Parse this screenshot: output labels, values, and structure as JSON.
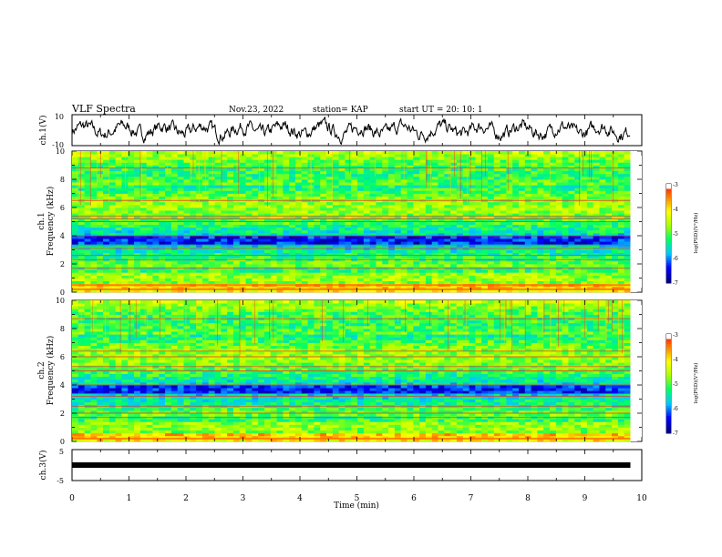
{
  "header": {
    "title": "VLF Spectra",
    "date": "Nov.23, 2022",
    "station": "station= KAP",
    "start": "start  UT =   20: 10: 1"
  },
  "colors": {
    "trace": "#000000",
    "colormap": [
      "#000080",
      "#0000ff",
      "#00c8ff",
      "#00ff66",
      "#aaff00",
      "#ffff00",
      "#ff8000",
      "#ff0000",
      "#ffffff"
    ]
  },
  "chart_data": [
    {
      "type": "line",
      "name": "ch1-waveform",
      "ylabel": "ch.1(V)",
      "ylim": [
        -10,
        10
      ],
      "yticks": [
        "10",
        "-10"
      ],
      "xlim": [
        0,
        10
      ]
    },
    {
      "type": "heatmap",
      "name": "ch1-spectrogram",
      "ylabel": "ch.1\nFrequency (kHz)",
      "ylabel_lines": [
        "ch.1",
        "Frequency (kHz)"
      ],
      "ylim": [
        0,
        10
      ],
      "yticks": [
        "0",
        "2",
        "4",
        "6",
        "8",
        "10"
      ],
      "xlim": [
        0,
        9.8
      ],
      "colorbar": {
        "label": "log(PSD)(V²/Hz)",
        "range": [
          -7,
          -3
        ],
        "ticks": [
          "-3",
          "-4",
          "-5",
          "-6",
          "-7"
        ]
      },
      "bands_khz": [
        0.2,
        0.5,
        1.7,
        2.3,
        2.6,
        3.1,
        3.3,
        4.0,
        5.0,
        5.2,
        5.4,
        6.5,
        8.8
      ]
    },
    {
      "type": "heatmap",
      "name": "ch2-spectrogram",
      "ylabel": "ch.2\nFrequency (kHz)",
      "ylabel_lines": [
        "ch.2",
        "Frequency (kHz)"
      ],
      "ylim": [
        0,
        10
      ],
      "yticks": [
        "0",
        "2",
        "4",
        "6",
        "8",
        "10"
      ],
      "xlim": [
        0,
        9.8
      ],
      "colorbar": {
        "label": "log(PSD)(V²/Hz)",
        "range": [
          -7,
          -3
        ],
        "ticks": [
          "-3",
          "-4",
          "-5",
          "-6",
          "-7"
        ]
      },
      "bands_khz": [
        0.2,
        1.7,
        2.0,
        2.5,
        3.2,
        3.4,
        4.0,
        5.0,
        5.3,
        6.0,
        6.4,
        8.7
      ]
    },
    {
      "type": "line",
      "name": "ch3-waveform",
      "ylabel": "ch.3(V)",
      "ylim": [
        -5,
        5
      ],
      "yticks": [
        "5",
        "-5"
      ],
      "xlim": [
        0,
        10
      ],
      "values": [
        {
          "x": 0,
          "y": 0
        },
        {
          "x": 9.8,
          "y": 0
        }
      ]
    }
  ],
  "xaxis": {
    "label": "Time  (min)",
    "ticks": [
      "0",
      "1",
      "2",
      "3",
      "4",
      "5",
      "6",
      "7",
      "8",
      "9",
      "10"
    ],
    "range": [
      0,
      10
    ]
  }
}
